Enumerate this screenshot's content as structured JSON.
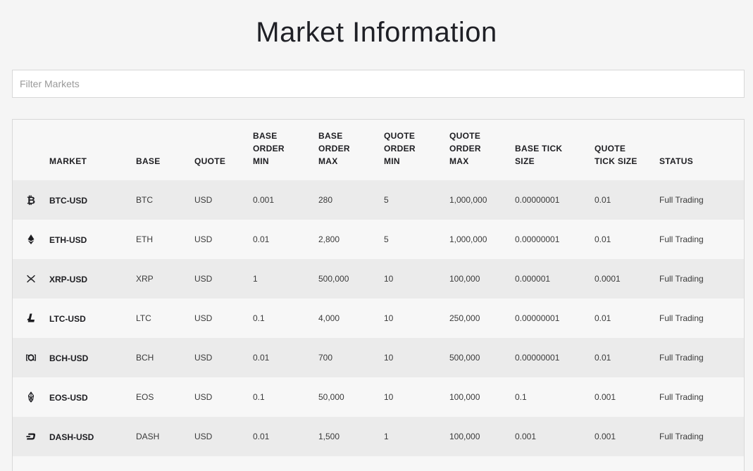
{
  "page": {
    "title": "Market Information"
  },
  "filter": {
    "placeholder": "Filter Markets",
    "value": ""
  },
  "table": {
    "headers": {
      "market": "MARKET",
      "base": "BASE",
      "quote": "QUOTE",
      "base_order_min": [
        "BASE",
        "ORDER",
        "MIN"
      ],
      "base_order_max": [
        "BASE",
        "ORDER",
        "MAX"
      ],
      "quote_order_min": [
        "QUOTE",
        "ORDER",
        "MIN"
      ],
      "quote_order_max": [
        "QUOTE",
        "ORDER",
        "MAX"
      ],
      "base_tick_size": [
        "BASE TICK",
        "SIZE"
      ],
      "quote_tick_size": [
        "QUOTE",
        "TICK SIZE"
      ],
      "status": "STATUS"
    },
    "rows": [
      {
        "icon": "bitcoin-icon",
        "market": "BTC-USD",
        "base": "BTC",
        "quote": "USD",
        "base_order_min": "0.001",
        "base_order_max": "280",
        "quote_order_min": "5",
        "quote_order_max": "1,000,000",
        "base_tick_size": "0.00000001",
        "quote_tick_size": "0.01",
        "status": "Full Trading"
      },
      {
        "icon": "ethereum-icon",
        "market": "ETH-USD",
        "base": "ETH",
        "quote": "USD",
        "base_order_min": "0.01",
        "base_order_max": "2,800",
        "quote_order_min": "5",
        "quote_order_max": "1,000,000",
        "base_tick_size": "0.00000001",
        "quote_tick_size": "0.01",
        "status": "Full Trading"
      },
      {
        "icon": "ripple-icon",
        "market": "XRP-USD",
        "base": "XRP",
        "quote": "USD",
        "base_order_min": "1",
        "base_order_max": "500,000",
        "quote_order_min": "10",
        "quote_order_max": "100,000",
        "base_tick_size": "0.000001",
        "quote_tick_size": "0.0001",
        "status": "Full Trading"
      },
      {
        "icon": "litecoin-icon",
        "market": "LTC-USD",
        "base": "LTC",
        "quote": "USD",
        "base_order_min": "0.1",
        "base_order_max": "4,000",
        "quote_order_min": "10",
        "quote_order_max": "250,000",
        "base_tick_size": "0.00000001",
        "quote_tick_size": "0.01",
        "status": "Full Trading"
      },
      {
        "icon": "bitcoin-cash-icon",
        "market": "BCH-USD",
        "base": "BCH",
        "quote": "USD",
        "base_order_min": "0.01",
        "base_order_max": "700",
        "quote_order_min": "10",
        "quote_order_max": "500,000",
        "base_tick_size": "0.00000001",
        "quote_tick_size": "0.01",
        "status": "Full Trading"
      },
      {
        "icon": "eos-icon",
        "market": "EOS-USD",
        "base": "EOS",
        "quote": "USD",
        "base_order_min": "0.1",
        "base_order_max": "50,000",
        "quote_order_min": "10",
        "quote_order_max": "100,000",
        "base_tick_size": "0.1",
        "quote_tick_size": "0.001",
        "status": "Full Trading"
      },
      {
        "icon": "dash-icon",
        "market": "DASH-USD",
        "base": "DASH",
        "quote": "USD",
        "base_order_min": "0.01",
        "base_order_max": "1,500",
        "quote_order_min": "1",
        "quote_order_max": "100,000",
        "base_tick_size": "0.001",
        "quote_tick_size": "0.001",
        "status": "Full Trading"
      }
    ]
  }
}
